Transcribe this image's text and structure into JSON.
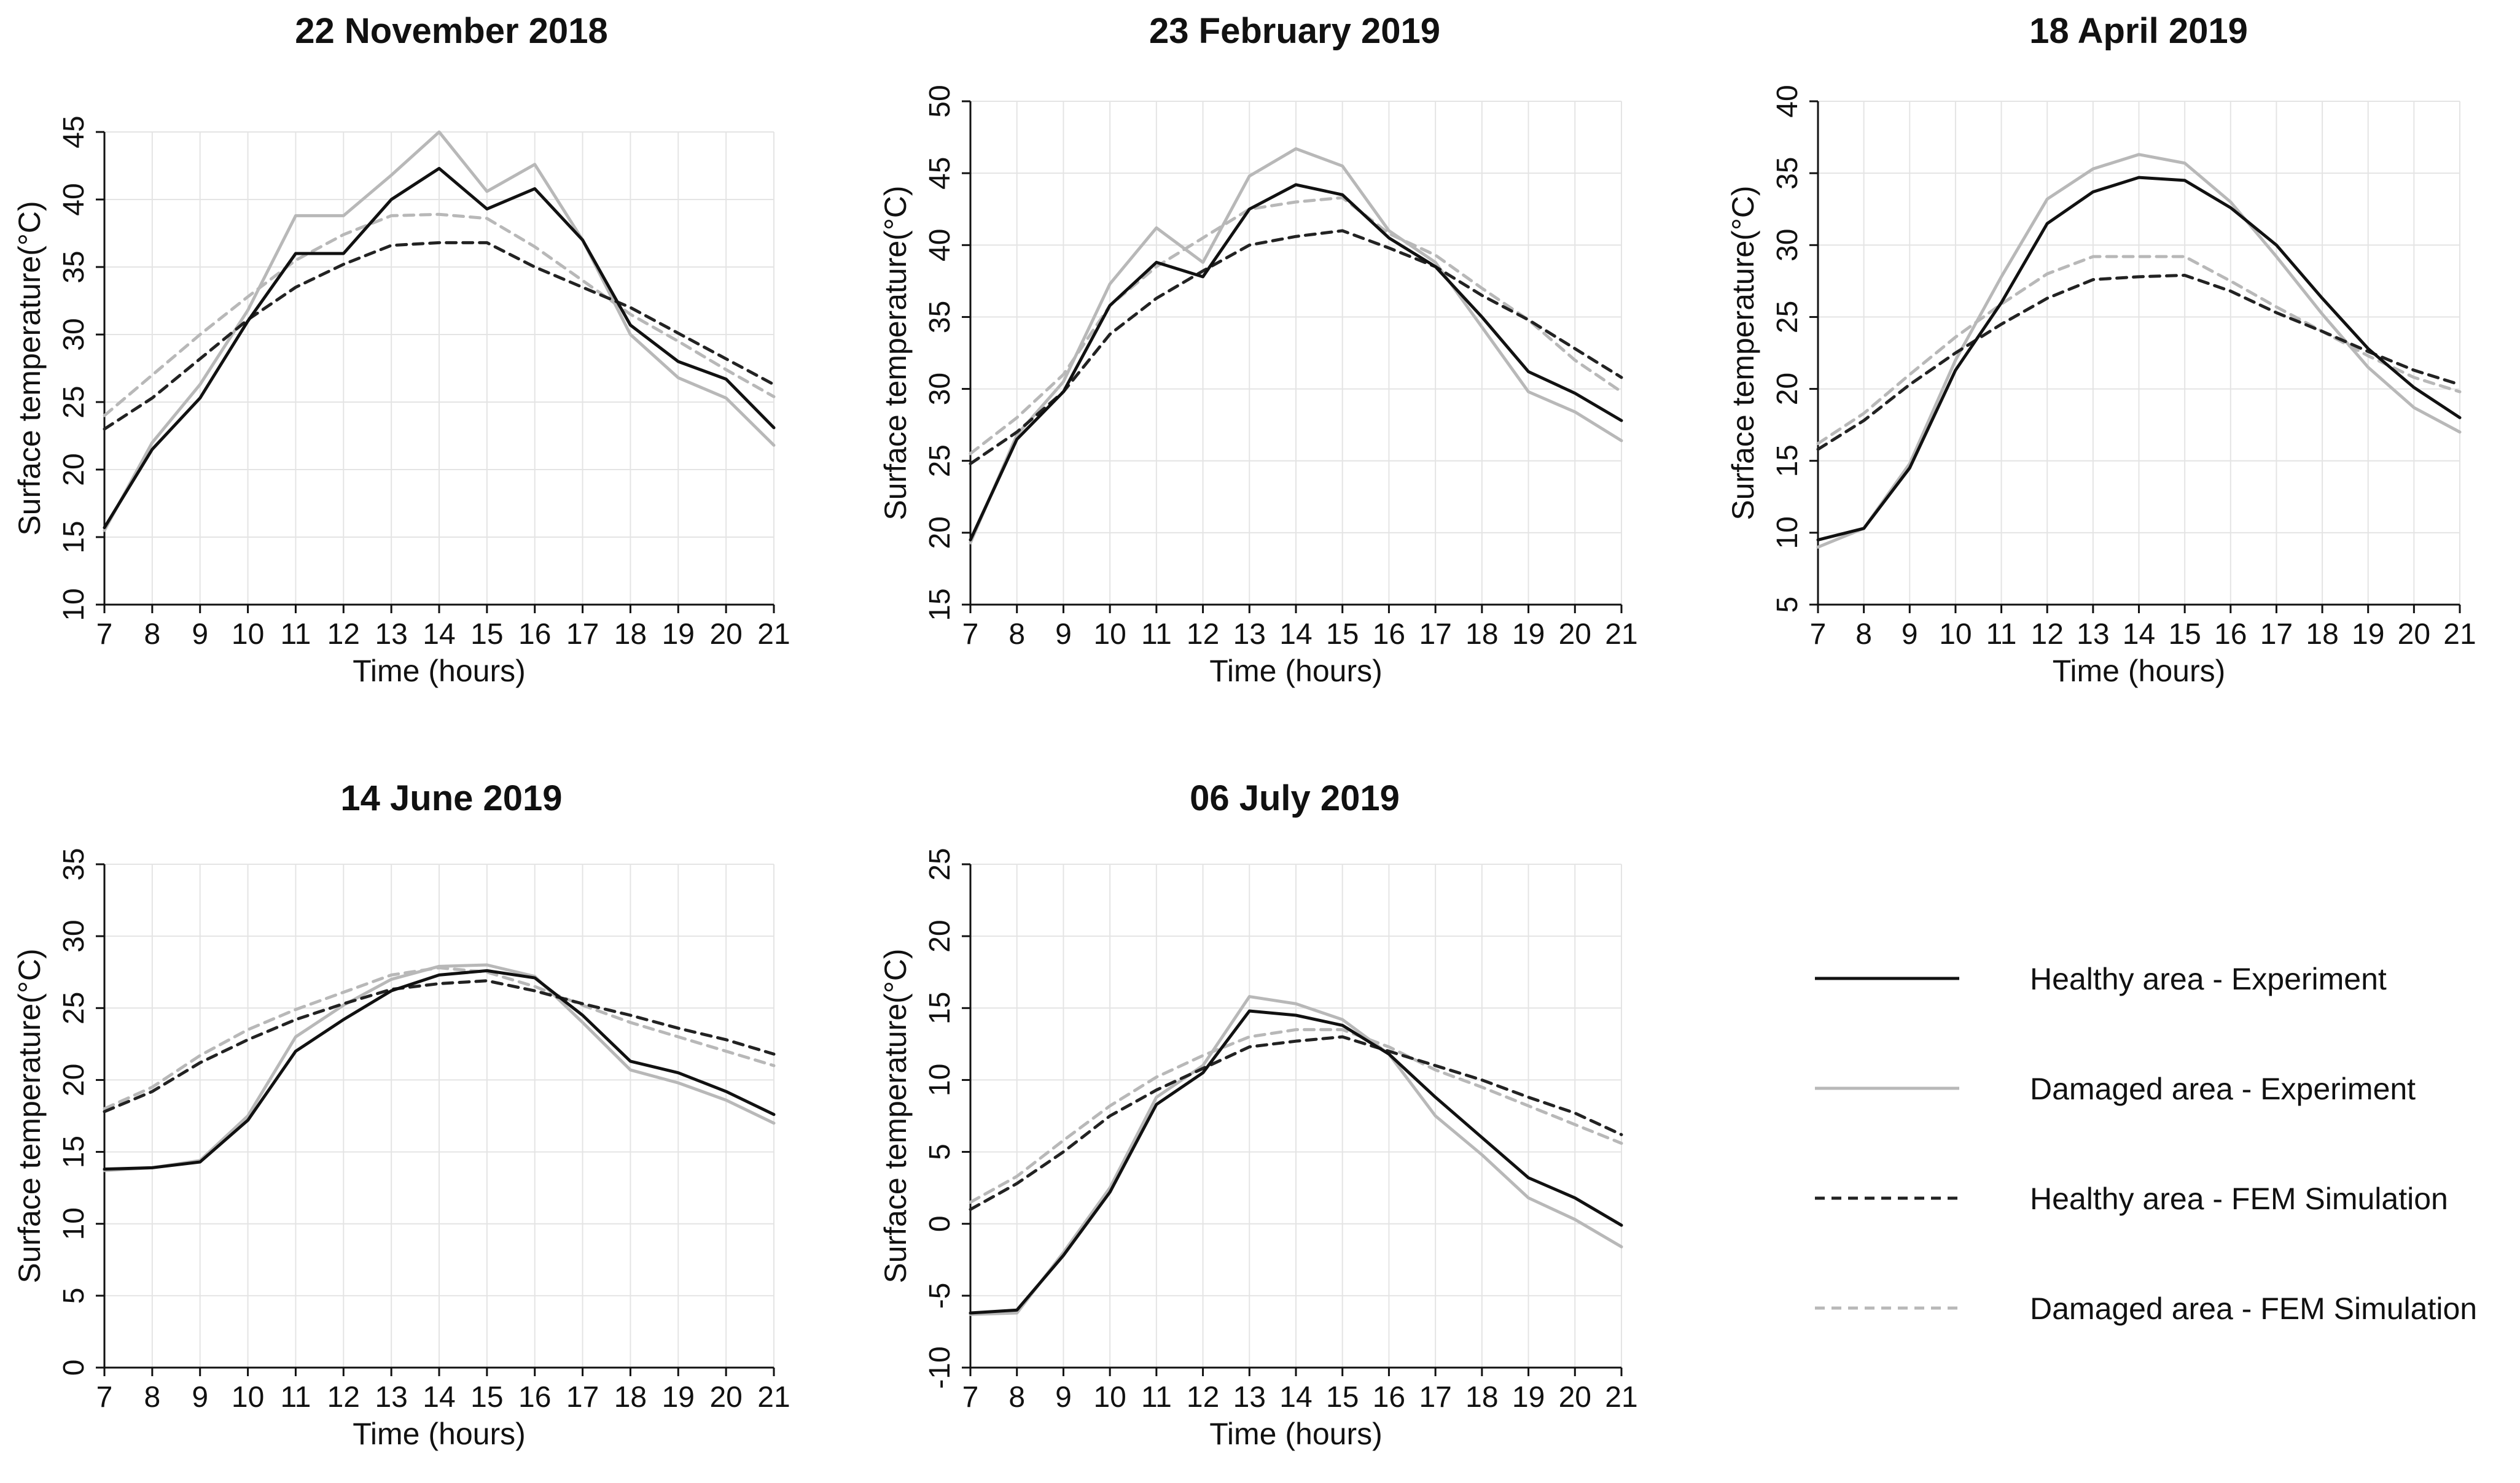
{
  "legend": {
    "items": [
      {
        "key": "healthy_exp",
        "label": "Healthy area - Experiment"
      },
      {
        "key": "damaged_exp",
        "label": "Damaged area - Experiment"
      },
      {
        "key": "healthy_fem",
        "label": "Healthy area - FEM Simulation"
      },
      {
        "key": "damaged_fem",
        "label": "Damaged area - FEM Simulation"
      }
    ]
  },
  "series_styles": {
    "healthy_exp": {
      "color": "#111111",
      "dash": "none"
    },
    "damaged_exp": {
      "color": "#b8b8b8",
      "dash": "none"
    },
    "healthy_fem": {
      "color": "#222222",
      "dash": "dashed"
    },
    "damaged_fem": {
      "color": "#b8b8b8",
      "dash": "dashed"
    }
  },
  "chart_data": [
    {
      "type": "line",
      "title": "22 November 2018",
      "xlabel": "Time (hours)",
      "ylabel": "Surface temperature(°C)",
      "x": [
        7,
        8,
        9,
        10,
        11,
        12,
        13,
        14,
        15,
        16,
        17,
        18,
        19,
        20,
        21
      ],
      "xlim": [
        7,
        21
      ],
      "ylim": [
        10,
        45
      ],
      "yticks": [
        10,
        15,
        20,
        25,
        30,
        35,
        40,
        45
      ],
      "series": [
        {
          "key": "healthy_exp",
          "name": "Healthy area - Experiment",
          "values": [
            15.7,
            21.5,
            25.3,
            31.0,
            36.0,
            36.0,
            40.0,
            42.3,
            39.3,
            40.8,
            37.0,
            30.7,
            28.0,
            26.7,
            23.1
          ]
        },
        {
          "key": "damaged_exp",
          "name": "Damaged area - Experiment",
          "values": [
            15.5,
            22.0,
            26.3,
            31.8,
            38.8,
            38.8,
            41.8,
            45.0,
            40.6,
            42.6,
            37.0,
            30.0,
            26.8,
            25.3,
            21.8
          ]
        },
        {
          "key": "healthy_fem",
          "name": "Healthy area - FEM Simulation",
          "values": [
            23.0,
            25.3,
            28.2,
            31.1,
            33.5,
            35.2,
            36.6,
            36.8,
            36.8,
            35.0,
            33.5,
            32.0,
            30.1,
            28.2,
            26.3
          ]
        },
        {
          "key": "damaged_fem",
          "name": "Damaged area - FEM Simulation",
          "values": [
            24.0,
            27.0,
            30.0,
            32.8,
            35.5,
            37.4,
            38.8,
            38.9,
            38.6,
            36.5,
            34.0,
            31.5,
            29.5,
            27.4,
            25.4
          ]
        }
      ]
    },
    {
      "type": "line",
      "title": "23 February 2019",
      "xlabel": "Time (hours)",
      "ylabel": "Surface temperature(°C)",
      "x": [
        7,
        8,
        9,
        10,
        11,
        12,
        13,
        14,
        15,
        16,
        17,
        18,
        19,
        20,
        21
      ],
      "xlim": [
        7,
        21
      ],
      "ylim": [
        15,
        50
      ],
      "yticks": [
        15,
        20,
        25,
        30,
        35,
        40,
        45,
        50
      ],
      "series": [
        {
          "key": "healthy_exp",
          "name": "Healthy area - Experiment",
          "values": [
            19.5,
            26.5,
            29.8,
            35.8,
            38.8,
            37.8,
            42.5,
            44.2,
            43.5,
            40.5,
            38.5,
            35.0,
            31.2,
            29.7,
            27.8
          ]
        },
        {
          "key": "damaged_exp",
          "name": "Damaged area - Experiment",
          "values": [
            19.3,
            26.8,
            30.5,
            37.3,
            41.2,
            38.8,
            44.8,
            46.7,
            45.5,
            41.0,
            38.8,
            34.3,
            29.8,
            28.4,
            26.4
          ]
        },
        {
          "key": "healthy_fem",
          "name": "Healthy area - FEM Simulation",
          "values": [
            24.8,
            27.0,
            29.8,
            33.8,
            36.3,
            38.2,
            40.0,
            40.6,
            41.0,
            39.8,
            38.5,
            36.5,
            34.8,
            32.8,
            30.8
          ]
        },
        {
          "key": "damaged_fem",
          "name": "Damaged area - FEM Simulation",
          "values": [
            25.5,
            28.0,
            31.0,
            35.8,
            38.5,
            40.5,
            42.5,
            43.0,
            43.3,
            40.8,
            39.3,
            37.0,
            34.8,
            32.0,
            29.8
          ]
        }
      ]
    },
    {
      "type": "line",
      "title": "18 April 2019",
      "xlabel": "Time (hours)",
      "ylabel": "Surface temperature(°C)",
      "x": [
        7,
        8,
        9,
        10,
        11,
        12,
        13,
        14,
        15,
        16,
        17,
        18,
        19,
        20,
        21
      ],
      "xlim": [
        7,
        21
      ],
      "ylim": [
        5,
        40
      ],
      "yticks": [
        5,
        10,
        15,
        20,
        25,
        30,
        35,
        40
      ],
      "series": [
        {
          "key": "healthy_exp",
          "name": "Healthy area - Experiment",
          "values": [
            9.5,
            10.3,
            14.5,
            21.3,
            26.0,
            31.5,
            33.7,
            34.7,
            34.5,
            32.6,
            30.0,
            26.3,
            22.8,
            20.1,
            18.0
          ]
        },
        {
          "key": "damaged_exp",
          "name": "Damaged area - Experiment",
          "values": [
            9.0,
            10.3,
            14.8,
            22.0,
            27.8,
            33.2,
            35.3,
            36.3,
            35.7,
            33.0,
            29.2,
            25.2,
            21.5,
            18.7,
            17.0
          ]
        },
        {
          "key": "healthy_fem",
          "name": "Healthy area - FEM Simulation",
          "values": [
            15.8,
            17.8,
            20.3,
            22.5,
            24.5,
            26.3,
            27.6,
            27.8,
            27.9,
            26.8,
            25.3,
            24.0,
            22.6,
            21.3,
            20.3
          ]
        },
        {
          "key": "damaged_fem",
          "name": "Damaged area - FEM Simulation",
          "values": [
            16.2,
            18.3,
            21.0,
            23.6,
            25.9,
            28.0,
            29.2,
            29.2,
            29.2,
            27.5,
            25.7,
            24.0,
            22.3,
            20.8,
            19.8
          ]
        }
      ]
    },
    {
      "type": "line",
      "title": "14 June 2019",
      "xlabel": "Time (hours)",
      "ylabel": "Surface temperature(°C)",
      "x": [
        7,
        8,
        9,
        10,
        11,
        12,
        13,
        14,
        15,
        16,
        17,
        18,
        19,
        20,
        21
      ],
      "xlim": [
        7,
        21
      ],
      "ylim": [
        0,
        35
      ],
      "yticks": [
        0,
        5,
        10,
        15,
        20,
        25,
        30,
        35
      ],
      "series": [
        {
          "key": "healthy_exp",
          "name": "Healthy area - Experiment",
          "values": [
            13.8,
            13.9,
            14.3,
            17.2,
            22.0,
            24.2,
            26.2,
            27.3,
            27.6,
            27.1,
            24.5,
            21.3,
            20.5,
            19.2,
            17.6
          ]
        },
        {
          "key": "damaged_exp",
          "name": "Damaged area - Experiment",
          "values": [
            13.7,
            13.9,
            14.4,
            17.5,
            23.0,
            25.2,
            27.0,
            27.9,
            28.0,
            27.2,
            24.0,
            20.7,
            19.8,
            18.6,
            17.0
          ]
        },
        {
          "key": "healthy_fem",
          "name": "Healthy area - FEM Simulation",
          "values": [
            17.8,
            19.2,
            21.2,
            22.8,
            24.2,
            25.3,
            26.3,
            26.7,
            26.9,
            26.2,
            25.3,
            24.5,
            23.6,
            22.8,
            21.8
          ]
        },
        {
          "key": "damaged_fem",
          "name": "Damaged area - FEM Simulation",
          "values": [
            18.0,
            19.5,
            21.7,
            23.5,
            24.9,
            26.1,
            27.3,
            27.8,
            27.5,
            26.5,
            25.2,
            24.0,
            23.0,
            22.0,
            21.0
          ]
        }
      ]
    },
    {
      "type": "line",
      "title": "06 July 2019",
      "xlabel": "Time (hours)",
      "ylabel": "Surface temperature(°C)",
      "x": [
        7,
        8,
        9,
        10,
        11,
        12,
        13,
        14,
        15,
        16,
        17,
        18,
        19,
        20,
        21
      ],
      "xlim": [
        7,
        21
      ],
      "ylim": [
        -10,
        25
      ],
      "yticks": [
        -10,
        -5,
        0,
        5,
        10,
        15,
        20,
        25
      ],
      "series": [
        {
          "key": "healthy_exp",
          "name": "Healthy area - Experiment",
          "values": [
            -6.2,
            -6.0,
            -2.2,
            2.2,
            8.3,
            10.5,
            14.8,
            14.5,
            13.8,
            11.8,
            8.8,
            6.0,
            3.2,
            1.8,
            -0.1
          ]
        },
        {
          "key": "damaged_exp",
          "name": "Damaged area - Experiment",
          "values": [
            -6.3,
            -6.2,
            -2.0,
            2.5,
            8.8,
            11.0,
            15.8,
            15.3,
            14.2,
            11.8,
            7.5,
            4.8,
            1.8,
            0.3,
            -1.6
          ]
        },
        {
          "key": "healthy_fem",
          "name": "Healthy area - FEM Simulation",
          "values": [
            1.0,
            2.8,
            5.0,
            7.5,
            9.3,
            10.8,
            12.3,
            12.7,
            13.0,
            12.0,
            11.0,
            10.0,
            8.8,
            7.7,
            6.2
          ]
        },
        {
          "key": "damaged_fem",
          "name": "Damaged area - FEM Simulation",
          "values": [
            1.5,
            3.3,
            5.8,
            8.2,
            10.2,
            11.7,
            13.0,
            13.5,
            13.5,
            12.3,
            10.7,
            9.5,
            8.2,
            6.9,
            5.6
          ]
        }
      ]
    }
  ]
}
